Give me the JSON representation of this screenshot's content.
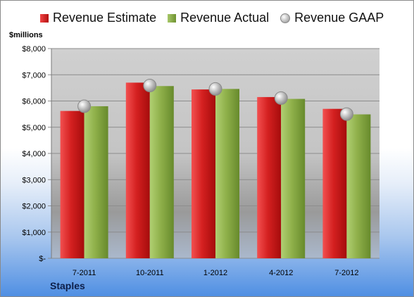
{
  "chart_data": {
    "type": "bar",
    "title": "",
    "ylabel": "$millions",
    "xlabel": "",
    "footer_label": "Staples",
    "categories": [
      "7-2011",
      "10-2011",
      "1-2012",
      "4-2012",
      "7-2012"
    ],
    "ylim": [
      0,
      8000
    ],
    "yticks": [
      0,
      1000,
      2000,
      3000,
      4000,
      5000,
      6000,
      7000,
      8000
    ],
    "ytick_labels": [
      "$-",
      "$1,000",
      "$2,000",
      "$3,000",
      "$4,000",
      "$5,000",
      "$6,000",
      "$7,000",
      "$8,000"
    ],
    "grid": true,
    "legend_position": "top",
    "series": [
      {
        "name": "Revenue Estimate",
        "kind": "bar",
        "color": "#d42020",
        "values": [
          5620,
          6700,
          6440,
          6150,
          5700
        ]
      },
      {
        "name": "Revenue Actual",
        "kind": "bar",
        "color": "#8fb04a",
        "values": [
          5800,
          6570,
          6460,
          6080,
          5490
        ]
      },
      {
        "name": "Revenue GAAP",
        "kind": "marker",
        "color": "#b8b8b8",
        "values": [
          5800,
          6590,
          6460,
          6110,
          5500
        ]
      }
    ]
  }
}
